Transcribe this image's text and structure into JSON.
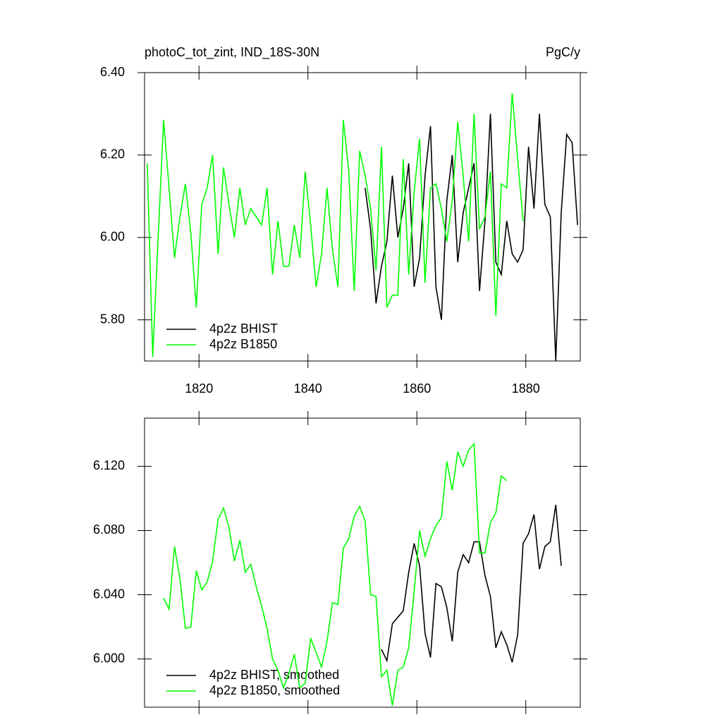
{
  "chart_data": [
    {
      "type": "line",
      "title": "photoC_tot_zint, IND_18S-30N",
      "right_title": "PgC/y",
      "x": [
        1810.5,
        1811.5,
        1812.5,
        1813.5,
        1814.5,
        1815.5,
        1816.5,
        1817.5,
        1818.5,
        1819.5,
        1820.5,
        1821.5,
        1822.5,
        1823.5,
        1824.5,
        1825.5,
        1826.5,
        1827.5,
        1828.5,
        1829.5,
        1830.5,
        1831.5,
        1832.5,
        1833.5,
        1834.5,
        1835.5,
        1836.5,
        1837.5,
        1838.5,
        1839.5,
        1840.5,
        1841.5,
        1842.5,
        1843.5,
        1844.5,
        1845.5,
        1846.5,
        1847.5,
        1848.5,
        1849.5,
        1850.5,
        1851.5,
        1852.5,
        1853.5,
        1854.5,
        1855.5,
        1856.5,
        1857.5,
        1858.5,
        1859.5,
        1860.5,
        1861.5,
        1862.5,
        1863.5,
        1864.5,
        1865.5,
        1866.5,
        1867.5,
        1868.5,
        1869.5,
        1870.5,
        1871.5,
        1872.5,
        1873.5,
        1874.5,
        1875.5,
        1876.5,
        1877.5,
        1878.5,
        1879.5,
        1880.5,
        1881.5,
        1882.5,
        1883.5,
        1884.5,
        1885.5,
        1886.5,
        1887.5,
        1888.5,
        1889.5
      ],
      "series": [
        {
          "name": "4p2z BHIST",
          "color": "#000000",
          "values": [
            null,
            null,
            null,
            null,
            null,
            null,
            null,
            null,
            null,
            null,
            null,
            null,
            null,
            null,
            null,
            null,
            null,
            null,
            null,
            null,
            null,
            null,
            null,
            null,
            null,
            null,
            null,
            null,
            null,
            null,
            null,
            null,
            null,
            null,
            null,
            null,
            null,
            null,
            null,
            null,
            6.12,
            6.02,
            5.84,
            5.93,
            5.99,
            6.15,
            6.0,
            6.07,
            6.18,
            5.88,
            5.95,
            6.15,
            6.27,
            5.88,
            5.8,
            6.09,
            6.2,
            5.94,
            6.06,
            6.12,
            6.18,
            5.87,
            6.04,
            6.3,
            5.94,
            5.91,
            6.04,
            5.96,
            5.94,
            5.97,
            6.22,
            6.07,
            6.3,
            6.08,
            6.05,
            5.7,
            6.06,
            6.25,
            6.23,
            6.03
          ]
        },
        {
          "name": "4p2z B1850",
          "color": "#00ff00",
          "values": [
            6.18,
            5.71,
            6.0,
            6.285,
            6.12,
            5.95,
            6.05,
            6.13,
            6.01,
            5.83,
            6.08,
            6.12,
            6.2,
            5.96,
            6.17,
            6.08,
            6.0,
            6.12,
            6.03,
            6.07,
            6.05,
            6.03,
            6.12,
            5.91,
            6.04,
            5.93,
            5.93,
            6.03,
            5.95,
            6.16,
            6.03,
            5.88,
            5.96,
            6.12,
            5.97,
            5.88,
            6.285,
            6.16,
            5.87,
            6.21,
            6.15,
            6.07,
            5.92,
            6.22,
            5.83,
            5.86,
            5.86,
            6.19,
            5.91,
            6.11,
            6.24,
            5.89,
            6.12,
            6.13,
            6.07,
            5.99,
            6.09,
            6.28,
            6.15,
            5.99,
            6.3,
            6.02,
            6.05,
            6.16,
            5.81,
            6.13,
            6.12,
            6.35,
            6.19,
            6.04,
            null,
            null,
            null,
            null,
            null,
            null,
            null,
            null,
            null,
            null
          ]
        }
      ],
      "xlim": [
        1810,
        1890
      ],
      "xticks": [
        1820,
        1840,
        1860,
        1880
      ],
      "ylim": [
        5.7,
        6.4
      ],
      "yticks": [
        {
          "value": 5.8,
          "label": "5.80"
        },
        {
          "value": 6.0,
          "label": "6.00"
        },
        {
          "value": 6.2,
          "label": "6.20"
        },
        {
          "value": 6.4,
          "label": "6.40"
        }
      ],
      "legend": "lower left"
    },
    {
      "type": "line",
      "x": [
        1810.5,
        1811.5,
        1812.5,
        1813.5,
        1814.5,
        1815.5,
        1816.5,
        1817.5,
        1818.5,
        1819.5,
        1820.5,
        1821.5,
        1822.5,
        1823.5,
        1824.5,
        1825.5,
        1826.5,
        1827.5,
        1828.5,
        1829.5,
        1830.5,
        1831.5,
        1832.5,
        1833.5,
        1834.5,
        1835.5,
        1836.5,
        1837.5,
        1838.5,
        1839.5,
        1840.5,
        1841.5,
        1842.5,
        1843.5,
        1844.5,
        1845.5,
        1846.5,
        1847.5,
        1848.5,
        1849.5,
        1850.5,
        1851.5,
        1852.5,
        1853.5,
        1854.5,
        1855.5,
        1856.5,
        1857.5,
        1858.5,
        1859.5,
        1860.5,
        1861.5,
        1862.5,
        1863.5,
        1864.5,
        1865.5,
        1866.5,
        1867.5,
        1868.5,
        1869.5,
        1870.5,
        1871.5,
        1872.5,
        1873.5,
        1874.5,
        1875.5,
        1876.5,
        1877.5,
        1878.5,
        1879.5,
        1880.5,
        1881.5,
        1882.5,
        1883.5,
        1884.5,
        1885.5,
        1886.5,
        1887.5,
        1888.5,
        1889.5
      ],
      "series": [
        {
          "name": "4p2z BHIST, smoothed",
          "color": "#000000",
          "values": [
            null,
            null,
            null,
            null,
            null,
            null,
            null,
            null,
            null,
            null,
            null,
            null,
            null,
            null,
            null,
            null,
            null,
            null,
            null,
            null,
            null,
            null,
            null,
            null,
            null,
            null,
            null,
            null,
            null,
            null,
            null,
            null,
            null,
            null,
            null,
            null,
            null,
            null,
            null,
            null,
            null,
            null,
            null,
            6.006,
            5.999,
            6.022,
            6.026,
            6.03,
            6.054,
            6.072,
            6.058,
            6.016,
            6.001,
            6.047,
            6.045,
            6.032,
            6.011,
            6.054,
            6.065,
            6.06,
            6.073,
            6.073,
            6.052,
            6.039,
            6.007,
            6.017,
            6.009,
            5.998,
            6.015,
            6.072,
            6.078,
            6.09,
            6.056,
            6.07,
            6.073,
            6.096,
            6.058,
            null,
            null,
            null
          ]
        },
        {
          "name": "4p2z B1850, smoothed",
          "color": "#00ff00",
          "values": [
            null,
            null,
            null,
            6.038,
            6.031,
            6.07,
            6.05,
            6.019,
            6.02,
            6.055,
            6.043,
            6.048,
            6.061,
            6.087,
            6.094,
            6.082,
            6.061,
            6.074,
            6.054,
            6.059,
            6.045,
            6.033,
            6.019,
            6.0,
            5.993,
            5.982,
            5.991,
            6.003,
            5.982,
            5.985,
            6.013,
            6.004,
            5.995,
            6.011,
            6.035,
            6.034,
            6.069,
            6.075,
            6.089,
            6.095,
            6.086,
            6.04,
            6.039,
            5.989,
            5.993,
            5.971,
            5.993,
            5.995,
            6.007,
            6.042,
            6.08,
            6.064,
            6.075,
            6.083,
            6.088,
            6.123,
            6.105,
            6.129,
            6.12,
            6.13,
            6.134,
            6.066,
            6.066,
            6.085,
            6.091,
            6.114,
            6.111,
            null,
            null,
            null,
            null,
            null,
            null,
            null,
            null,
            null,
            null,
            null,
            null,
            null
          ]
        }
      ],
      "xlim": [
        1810,
        1890
      ],
      "xticks": [
        1820,
        1840,
        1860,
        1880
      ],
      "xtick_labels": false,
      "ylim": [
        5.97,
        6.15
      ],
      "yticks": [
        {
          "value": 6.0,
          "label": "6.000"
        },
        {
          "value": 6.04,
          "label": "6.040"
        },
        {
          "value": 6.08,
          "label": "6.080"
        },
        {
          "value": 6.12,
          "label": "6.120"
        }
      ],
      "legend": "lower left"
    }
  ]
}
